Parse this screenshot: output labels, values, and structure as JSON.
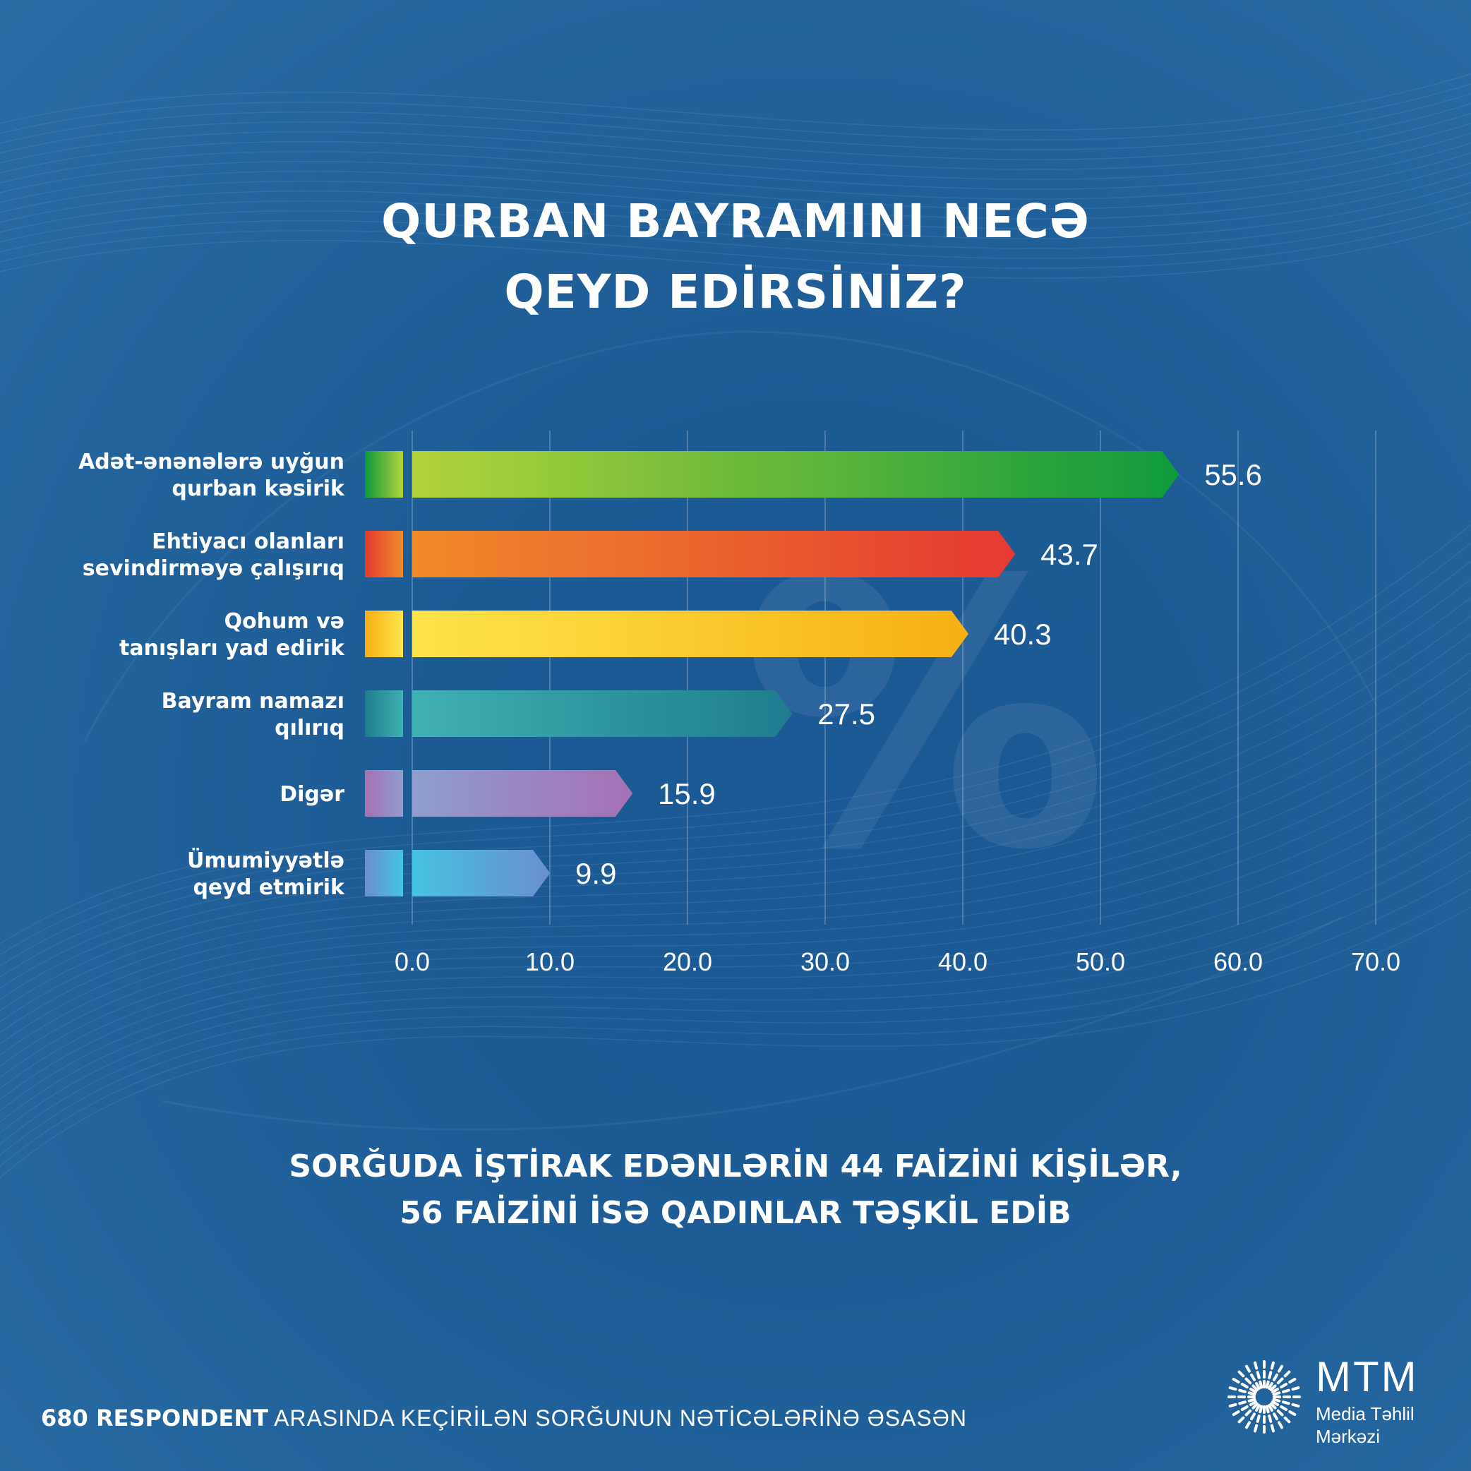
{
  "title_lines": [
    "QURBAN BAYRAMINI NECƏ",
    "QEYD EDİRSİNİZ?"
  ],
  "chart_data": {
    "type": "bar",
    "orientation": "horizontal",
    "categories": [
      [
        "Adət-ənənələrə uyğun",
        "qurban kəsirik"
      ],
      [
        "Ehtiyacı olanları",
        "sevindirməyə çalışırıq"
      ],
      [
        "Qohum və",
        "tanışları yad edirik"
      ],
      [
        "Bayram namazı",
        "qılırıq"
      ],
      [
        "Digər"
      ],
      [
        "Ümumiyyətlə",
        "qeyd etmirik"
      ]
    ],
    "values": [
      55.6,
      43.7,
      40.3,
      27.5,
      15.9,
      9.9
    ],
    "value_labels": [
      "55.6",
      "43.7",
      "40.3",
      "27.5",
      "15.9",
      "9.9"
    ],
    "bar_colors": [
      [
        "#b3d33a",
        "#0e9a3c"
      ],
      [
        "#f08a2a",
        "#e53a32"
      ],
      [
        "#fde44a",
        "#f7b014"
      ],
      [
        "#3fb0b3",
        "#1f7c8e"
      ],
      [
        "#8f9ed0",
        "#a571b3"
      ],
      [
        "#46c3e2",
        "#6a8ed0"
      ]
    ],
    "xlim": [
      0,
      70
    ],
    "xticks": [
      "0.0",
      "10.0",
      "20.0",
      "30.0",
      "40.0",
      "50.0",
      "60.0",
      "70.0"
    ],
    "grid": "vertical",
    "watermark": "%"
  },
  "note_lines": [
    "SORĞUDA İŞTİRAK EDƏNLƏRİN 44 FAİZİNİ KİŞİLƏR,",
    "56 FAİZİNİ İSƏ QADINLAR TƏŞKİL EDİB"
  ],
  "footer": {
    "strong": "680 RESPONDENT",
    "rest": " ARASINDA KEÇİRİLƏN SORĞUNUN NƏTİCƏLƏRİNƏ ƏSASƏN"
  },
  "logo": {
    "name": "MTM",
    "sub1": "Media Təhlil",
    "sub2": "Mərkəzi"
  }
}
